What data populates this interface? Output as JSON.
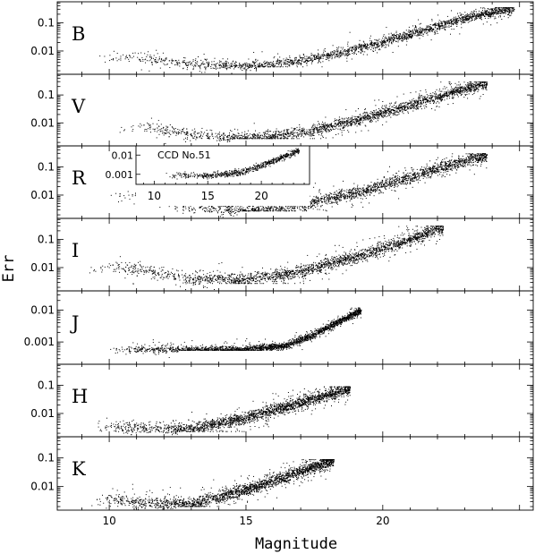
{
  "chart_data": {
    "type": "scatter",
    "xlabel": "Magnitude",
    "ylabel": "Err",
    "xlim": [
      8.1,
      25.5
    ],
    "xticks": [
      10,
      15,
      20
    ],
    "yscale": "log",
    "grid": false,
    "panels": [
      {
        "band": "B",
        "ylim": [
          0.0015,
          0.55
        ],
        "yticks": [
          {
            "value": 0.1,
            "label": "0.1"
          },
          {
            "value": 0.01,
            "label": "0.01"
          }
        ],
        "mag_range": [
          9.5,
          24.8
        ],
        "min_err": 0.003,
        "min_mag": 15.4,
        "max_err": 0.35,
        "sigma": 0.16,
        "trend": [
          [
            11.0,
            0.006
          ],
          [
            13.0,
            0.0035
          ],
          [
            15.0,
            0.003
          ],
          [
            17.0,
            0.0045
          ],
          [
            19.0,
            0.012
          ],
          [
            21.0,
            0.04
          ],
          [
            23.0,
            0.15
          ],
          [
            24.5,
            0.3
          ]
        ]
      },
      {
        "band": "V",
        "ylim": [
          0.0015,
          0.55
        ],
        "yticks": [
          {
            "value": 0.1,
            "label": "0.1"
          },
          {
            "value": 0.01,
            "label": "0.01"
          }
        ],
        "mag_range": [
          10.3,
          23.8
        ],
        "min_err": 0.003,
        "min_mag": 14.5,
        "max_err": 0.3,
        "sigma": 0.18,
        "trend": [
          [
            11.0,
            0.008
          ],
          [
            13.0,
            0.004
          ],
          [
            15.0,
            0.003
          ],
          [
            17.0,
            0.0045
          ],
          [
            19.0,
            0.012
          ],
          [
            21.0,
            0.045
          ],
          [
            23.0,
            0.17
          ],
          [
            23.8,
            0.26
          ]
        ]
      },
      {
        "band": "R",
        "ylim": [
          0.0015,
          0.55
        ],
        "yticks": [
          {
            "value": 0.1,
            "label": "0.1"
          },
          {
            "value": 0.01,
            "label": "0.01"
          }
        ],
        "mag_range": [
          10.0,
          23.8
        ],
        "min_err": 0.003,
        "min_mag": 14.8,
        "max_err": 0.3,
        "sigma": 0.2,
        "trend": [
          [
            11.0,
            0.01
          ],
          [
            13.0,
            0.004
          ],
          [
            15.0,
            0.003
          ],
          [
            17.0,
            0.0045
          ],
          [
            19.0,
            0.012
          ],
          [
            21.0,
            0.045
          ],
          [
            23.0,
            0.17
          ],
          [
            23.8,
            0.26
          ]
        ],
        "inset": {
          "label": "CCD No.51",
          "xlim": [
            8.3,
            24.5
          ],
          "ylim": [
            0.0003,
            0.03
          ],
          "xticks": [
            10,
            15,
            20
          ],
          "yticks": [
            {
              "value": 0.01,
              "label": "0.01"
            },
            {
              "value": 0.001,
              "label": "0.001"
            }
          ],
          "trend": [
            [
              11.0,
              0.0009
            ],
            [
              15.0,
              0.0009
            ],
            [
              18.0,
              0.0013
            ],
            [
              20.0,
              0.003
            ],
            [
              22.0,
              0.008
            ],
            [
              23.5,
              0.018
            ]
          ]
        }
      },
      {
        "band": "I",
        "ylim": [
          0.0015,
          0.55
        ],
        "yticks": [
          {
            "value": 0.1,
            "label": "0.1"
          },
          {
            "value": 0.01,
            "label": "0.01"
          }
        ],
        "mag_range": [
          9.2,
          22.2
        ],
        "min_err": 0.003,
        "min_mag": 14.0,
        "max_err": 0.3,
        "sigma": 0.2,
        "trend": [
          [
            9.5,
            0.012
          ],
          [
            11.0,
            0.009
          ],
          [
            13.0,
            0.004
          ],
          [
            15.0,
            0.004
          ],
          [
            17.0,
            0.007
          ],
          [
            19.0,
            0.025
          ],
          [
            21.0,
            0.1
          ],
          [
            22.0,
            0.25
          ]
        ]
      },
      {
        "band": "J",
        "ylim": [
          0.0002,
          0.04
        ],
        "yticks": [
          {
            "value": 0.01,
            "label": "0.01"
          },
          {
            "value": 0.001,
            "label": "0.001"
          }
        ],
        "mag_range": [
          10.0,
          19.2
        ],
        "min_err": 0.0006,
        "min_mag": 12.5,
        "max_err": 0.012,
        "sigma": 0.1,
        "trend": [
          [
            10.0,
            0.0006
          ],
          [
            15.0,
            0.0006
          ],
          [
            16.5,
            0.0008
          ],
          [
            17.5,
            0.0018
          ],
          [
            18.5,
            0.005
          ],
          [
            19.2,
            0.01
          ]
        ]
      },
      {
        "band": "H",
        "ylim": [
          0.0015,
          0.55
        ],
        "yticks": [
          {
            "value": 0.1,
            "label": "0.1"
          },
          {
            "value": 0.01,
            "label": "0.01"
          }
        ],
        "mag_range": [
          9.5,
          18.8
        ],
        "min_err": 0.0025,
        "min_mag": 12.5,
        "max_err": 0.09,
        "sigma": 0.2,
        "trend": [
          [
            9.5,
            0.004
          ],
          [
            11.0,
            0.003
          ],
          [
            13.0,
            0.003
          ],
          [
            15.0,
            0.007
          ],
          [
            17.0,
            0.025
          ],
          [
            18.8,
            0.08
          ]
        ]
      },
      {
        "band": "K",
        "ylim": [
          0.0015,
          0.55
        ],
        "yticks": [
          {
            "value": 0.1,
            "label": "0.1"
          },
          {
            "value": 0.01,
            "label": "0.01"
          }
        ],
        "mag_range": [
          9.3,
          18.2
        ],
        "min_err": 0.0022,
        "min_mag": 12.5,
        "max_err": 0.09,
        "sigma": 0.2,
        "trend": [
          [
            9.3,
            0.004
          ],
          [
            11.0,
            0.003
          ],
          [
            13.0,
            0.0025
          ],
          [
            15.0,
            0.008
          ],
          [
            17.0,
            0.035
          ],
          [
            18.2,
            0.085
          ]
        ]
      }
    ]
  }
}
